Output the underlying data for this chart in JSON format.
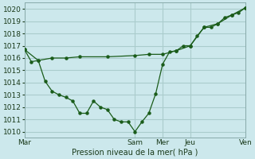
{
  "xlabel": "Pression niveau de la mer( hPa )",
  "bg_color": "#cce8ec",
  "grid_color": "#aacccc",
  "line_color": "#1a5c1a",
  "xlim": [
    0,
    96
  ],
  "ylim": [
    1009.5,
    1020.5
  ],
  "yticks": [
    1010,
    1011,
    1012,
    1013,
    1014,
    1015,
    1016,
    1017,
    1018,
    1019,
    1020
  ],
  "xtick_positions": [
    0,
    48,
    60,
    72,
    96
  ],
  "xtick_labels": [
    "Mar",
    "Sam",
    "Mer",
    "Jeu",
    "Ven"
  ],
  "vline_positions": [
    0,
    48,
    60,
    72,
    96
  ],
  "series1_sparse": [
    [
      0,
      1016.7
    ],
    [
      6,
      1015.8
    ],
    [
      12,
      1016.0
    ],
    [
      18,
      1016.0
    ],
    [
      24,
      1016.1
    ],
    [
      36,
      1016.1
    ],
    [
      48,
      1016.2
    ],
    [
      54,
      1016.3
    ],
    [
      60,
      1016.3
    ],
    [
      66,
      1016.6
    ],
    [
      72,
      1017.0
    ],
    [
      78,
      1018.5
    ],
    [
      84,
      1018.8
    ],
    [
      90,
      1019.5
    ],
    [
      96,
      1020.1
    ]
  ],
  "series2": [
    [
      0,
      1016.7
    ],
    [
      3,
      1015.7
    ],
    [
      6,
      1015.8
    ],
    [
      9,
      1014.1
    ],
    [
      12,
      1013.3
    ],
    [
      15,
      1013.0
    ],
    [
      18,
      1012.8
    ],
    [
      21,
      1012.5
    ],
    [
      24,
      1011.5
    ],
    [
      27,
      1011.5
    ],
    [
      30,
      1012.5
    ],
    [
      33,
      1012.0
    ],
    [
      36,
      1011.8
    ],
    [
      39,
      1011.0
    ],
    [
      42,
      1010.8
    ],
    [
      45,
      1010.8
    ],
    [
      48,
      1010.0
    ],
    [
      51,
      1010.8
    ],
    [
      54,
      1011.5
    ],
    [
      57,
      1013.1
    ],
    [
      60,
      1015.5
    ],
    [
      63,
      1016.5
    ],
    [
      66,
      1016.6
    ],
    [
      69,
      1017.0
    ],
    [
      72,
      1017.0
    ],
    [
      75,
      1017.8
    ],
    [
      78,
      1018.5
    ],
    [
      81,
      1018.5
    ],
    [
      84,
      1018.8
    ],
    [
      87,
      1019.3
    ],
    [
      90,
      1019.5
    ],
    [
      93,
      1019.7
    ],
    [
      96,
      1020.1
    ]
  ]
}
